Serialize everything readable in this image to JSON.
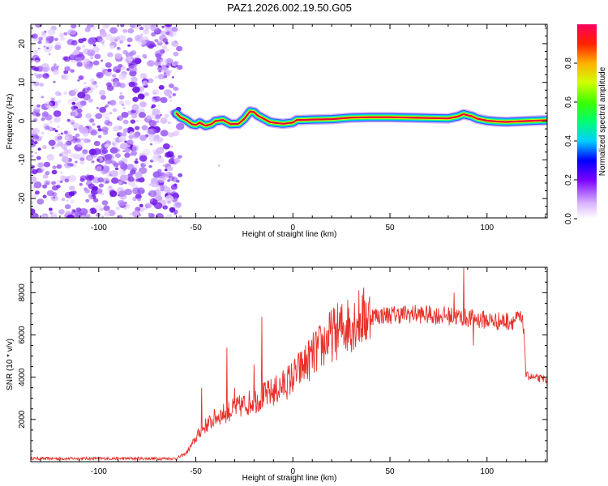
{
  "title": "PAZ1.2026.002.19.50.G05",
  "colors": {
    "snr_line": "#e8312b",
    "track_core": "#e8003a",
    "noise": "#9a40f0",
    "frame": "#000000"
  },
  "chart_data": [
    {
      "type": "heatmap",
      "name": "spectrogram",
      "xlabel": "Height of straight line (km)",
      "ylabel": "Frequency (Hz)",
      "xlim": [
        -135,
        131
      ],
      "ylim": [
        -25,
        25
      ],
      "xticks": [
        -100,
        -50,
        0,
        50,
        100
      ],
      "yticks": [
        -20,
        -10,
        0,
        10,
        20
      ],
      "noise_region_x": [
        -135,
        -58
      ],
      "track": {
        "x": [
          -60,
          -58,
          -55,
          -52,
          -50,
          -48,
          -45,
          -42,
          -40,
          -36,
          -32,
          -28,
          -25,
          -22,
          -20,
          -18,
          -15,
          -12,
          -10,
          -5,
          0,
          2,
          5,
          10,
          20,
          30,
          40,
          50,
          60,
          70,
          80,
          85,
          88,
          90,
          92,
          95,
          100,
          105,
          110,
          115,
          120,
          125,
          131
        ],
        "y": [
          2.0,
          1.0,
          0.3,
          -0.8,
          -1.0,
          -0.4,
          -1.2,
          -0.8,
          0.0,
          0.3,
          -0.8,
          -0.7,
          0.6,
          2.5,
          2.3,
          1.4,
          0.6,
          -0.2,
          -0.4,
          -0.7,
          -0.4,
          0.3,
          0.3,
          0.4,
          0.5,
          0.9,
          1.0,
          1.0,
          0.9,
          0.8,
          0.7,
          1.2,
          1.8,
          1.5,
          1.3,
          0.6,
          0.1,
          -0.1,
          -0.2,
          -0.1,
          0.0,
          0.1,
          0.2
        ]
      }
    },
    {
      "type": "colorbar",
      "label": "Normalized spectral amplitude",
      "ticks": [
        "0.0",
        "0.2",
        "0.4",
        "0.6",
        "0.8"
      ],
      "range": [
        0,
        1
      ]
    },
    {
      "type": "line",
      "name": "snr",
      "xlabel": "Height of straight line (km)",
      "ylabel": "SNR (10 * v/v)",
      "xlim": [
        -135,
        131
      ],
      "ylim": [
        0,
        9200
      ],
      "xticks": [
        -100,
        -50,
        0,
        50,
        100
      ],
      "yticks": [
        2000,
        4000,
        6000,
        8000
      ],
      "x": [
        -135,
        -100,
        -60,
        -55,
        -52,
        -50,
        -48,
        -45,
        -42,
        -40,
        -35,
        -30,
        -25,
        -20,
        -15,
        -10,
        -5,
        0,
        5,
        10,
        15,
        20,
        25,
        30,
        35,
        40,
        50,
        60,
        70,
        80,
        85,
        90,
        95,
        100,
        105,
        110,
        115,
        117,
        119,
        120,
        125,
        131
      ],
      "values": [
        150,
        150,
        150,
        400,
        800,
        1100,
        1400,
        1700,
        1900,
        2100,
        2300,
        2500,
        2700,
        2900,
        3100,
        3300,
        3600,
        4000,
        4500,
        5000,
        5500,
        6000,
        6300,
        6600,
        6800,
        6900,
        6950,
        7000,
        6950,
        6900,
        6850,
        6800,
        6750,
        6700,
        6650,
        6650,
        6700,
        6800,
        6300,
        4100,
        3950,
        3900
      ],
      "spikes": [
        {
          "x": -47,
          "value": 3500
        },
        {
          "x": -34,
          "value": 5400
        },
        {
          "x": -30,
          "value": 3500
        },
        {
          "x": -16,
          "value": 6850
        },
        {
          "x": -20,
          "value": 4600
        },
        {
          "x": 88,
          "value": 9200
        },
        {
          "x": 83,
          "value": 8000
        },
        {
          "x": 93,
          "value": 5500
        }
      ]
    }
  ]
}
